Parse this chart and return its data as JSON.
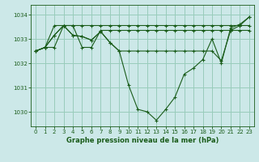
{
  "title": "Graphe pression niveau de la mer (hPa)",
  "background_color": "#cce8e8",
  "grid_color": "#99ccbb",
  "line_color": "#1a5c1a",
  "marker_color": "#1a5c1a",
  "xlim": [
    -0.5,
    23.5
  ],
  "ylim": [
    1029.4,
    1034.4
  ],
  "yticks": [
    1030,
    1031,
    1032,
    1033,
    1034
  ],
  "xticks": [
    0,
    1,
    2,
    3,
    4,
    5,
    6,
    7,
    8,
    9,
    10,
    11,
    12,
    13,
    14,
    15,
    16,
    17,
    18,
    19,
    20,
    21,
    22,
    23
  ],
  "series": [
    [
      1032.5,
      1032.65,
      1032.65,
      1033.55,
      1033.55,
      1033.55,
      1033.55,
      1033.55,
      1033.55,
      1033.55,
      1033.55,
      1033.55,
      1033.55,
      1033.55,
      1033.55,
      1033.55,
      1033.55,
      1033.55,
      1033.55,
      1033.55,
      1033.55,
      1033.55,
      1033.55,
      1033.55
    ],
    [
      1032.5,
      1032.65,
      1033.55,
      1033.55,
      1033.55,
      1032.65,
      1032.65,
      1033.35,
      1033.35,
      1033.35,
      1033.35,
      1033.35,
      1033.35,
      1033.35,
      1033.35,
      1033.35,
      1033.35,
      1033.35,
      1033.35,
      1033.35,
      1033.35,
      1033.35,
      1033.35,
      1033.35
    ],
    [
      1032.5,
      1032.65,
      1033.15,
      1033.55,
      1033.15,
      1033.1,
      1032.95,
      1033.3,
      1032.85,
      1032.5,
      1032.5,
      1032.5,
      1032.5,
      1032.5,
      1032.5,
      1032.5,
      1032.5,
      1032.5,
      1032.5,
      1032.5,
      1032.1,
      1033.35,
      1033.55,
      1033.9
    ],
    [
      1032.5,
      1032.65,
      1033.15,
      1033.55,
      1033.15,
      1033.1,
      1032.95,
      1033.3,
      1032.85,
      1032.5,
      1031.1,
      1030.1,
      1030.0,
      1029.65,
      1030.1,
      1030.6,
      1031.55,
      1031.8,
      1032.15,
      1033.0,
      1032.0,
      1033.45,
      1033.6,
      1033.9
    ]
  ]
}
